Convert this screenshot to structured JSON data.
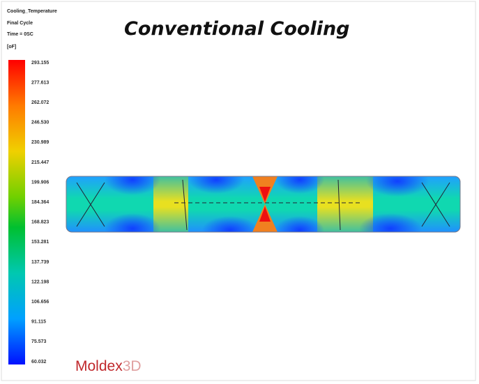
{
  "result": {
    "quantity": "Cooling_Temperature",
    "cycle": "Final Cycle",
    "time": "Time = 0SC",
    "unit": "[oF]"
  },
  "title": "Conventional Cooling",
  "legend": {
    "labels": [
      "293.155",
      "277.613",
      "262.072",
      "246.530",
      "230.989",
      "215.447",
      "199.906",
      "184.364",
      "168.823",
      "153.281",
      "137.739",
      "122.198",
      "106.656",
      "91.115",
      "75.573",
      "60.032"
    ]
  },
  "logo": {
    "brand": "Moldex",
    "suffix": "3D"
  }
}
